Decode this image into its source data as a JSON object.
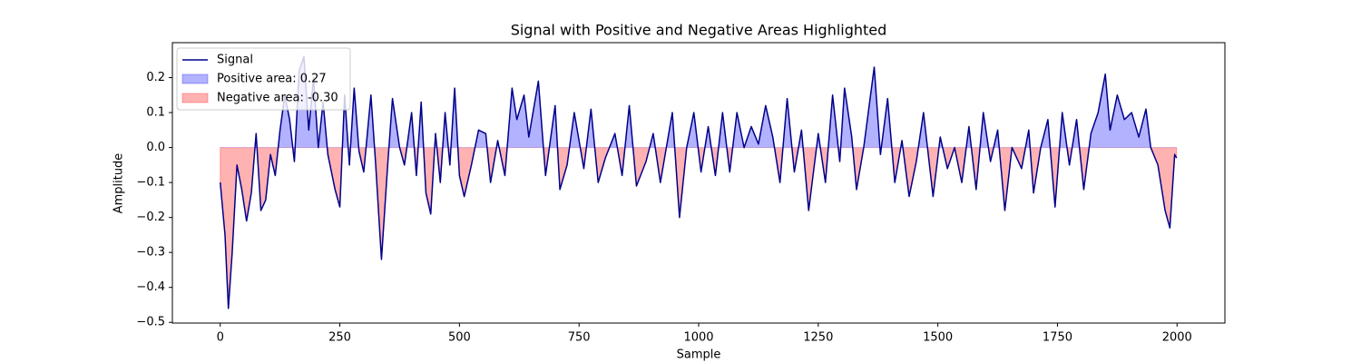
{
  "chart_data": {
    "type": "line",
    "title": "Signal with Positive and Negative Areas Highlighted",
    "xlabel": "Sample",
    "ylabel": "Amplitude",
    "xlim": [
      -100,
      2100
    ],
    "ylim": [
      -0.502,
      0.3
    ],
    "xticks": [
      0,
      250,
      500,
      750,
      1000,
      1250,
      1500,
      1750,
      2000
    ],
    "yticks": [
      {
        "value": -0.5,
        "label": "−0.5"
      },
      {
        "value": -0.4,
        "label": "−0.4"
      },
      {
        "value": -0.3,
        "label": "−0.3"
      },
      {
        "value": -0.2,
        "label": "−0.2"
      },
      {
        "value": -0.1,
        "label": "−0.1"
      },
      {
        "value": 0,
        "label": "0.0"
      },
      {
        "value": 0.1,
        "label": "0.1"
      },
      {
        "value": 0.2,
        "label": "0.2"
      }
    ],
    "legend": "upper left",
    "x": [
      0,
      10,
      17,
      25,
      35,
      45,
      55,
      65,
      75,
      85,
      95,
      105,
      115,
      125,
      135,
      145,
      155,
      165,
      175,
      185,
      195,
      205,
      215,
      225,
      240,
      250,
      260,
      270,
      280,
      290,
      300,
      315,
      325,
      337,
      350,
      360,
      375,
      385,
      400,
      410,
      420,
      430,
      440,
      450,
      460,
      470,
      480,
      490,
      500,
      510,
      525,
      540,
      555,
      565,
      580,
      595,
      610,
      620,
      635,
      645,
      665,
      680,
      700,
      710,
      725,
      740,
      760,
      775,
      790,
      805,
      825,
      840,
      855,
      870,
      890,
      905,
      920,
      945,
      960,
      975,
      990,
      1005,
      1020,
      1035,
      1050,
      1065,
      1080,
      1095,
      1110,
      1125,
      1140,
      1155,
      1170,
      1185,
      1200,
      1215,
      1230,
      1250,
      1265,
      1280,
      1295,
      1305,
      1320,
      1330,
      1345,
      1367,
      1380,
      1395,
      1410,
      1425,
      1440,
      1455,
      1470,
      1490,
      1505,
      1520,
      1535,
      1550,
      1565,
      1580,
      1595,
      1610,
      1625,
      1640,
      1655,
      1675,
      1690,
      1700,
      1715,
      1730,
      1745,
      1760,
      1775,
      1790,
      1805,
      1820,
      1835,
      1850,
      1860,
      1875,
      1890,
      1905,
      1920,
      1935,
      1945,
      1960,
      1975,
      1985,
      1995,
      1999
    ],
    "series": [
      {
        "name": "Signal",
        "color": "#00008b",
        "values": [
          -0.1,
          -0.25,
          -0.46,
          -0.3,
          -0.05,
          -0.12,
          -0.21,
          -0.13,
          0.04,
          -0.18,
          -0.15,
          -0.02,
          -0.08,
          0.05,
          0.15,
          0.08,
          -0.04,
          0.22,
          0.26,
          0.05,
          0.2,
          0.0,
          0.13,
          -0.02,
          -0.12,
          -0.17,
          0.15,
          -0.05,
          0.17,
          -0.01,
          -0.07,
          0.15,
          -0.05,
          -0.32,
          -0.05,
          0.14,
          0.0,
          -0.05,
          0.1,
          -0.08,
          0.13,
          -0.13,
          -0.19,
          0.04,
          -0.1,
          0.1,
          -0.05,
          0.17,
          -0.08,
          -0.14,
          -0.05,
          0.05,
          0.04,
          -0.1,
          0.02,
          -0.08,
          0.17,
          0.08,
          0.15,
          0.03,
          0.19,
          -0.08,
          0.12,
          -0.12,
          -0.05,
          0.1,
          -0.06,
          0.11,
          -0.1,
          -0.03,
          0.04,
          -0.08,
          0.12,
          -0.11,
          -0.04,
          0.04,
          -0.1,
          0.1,
          -0.2,
          0.0,
          0.1,
          -0.07,
          0.06,
          -0.08,
          0.1,
          -0.07,
          0.1,
          0.0,
          0.06,
          0.01,
          0.12,
          0.03,
          -0.1,
          0.14,
          -0.07,
          0.05,
          -0.18,
          0.04,
          -0.1,
          0.15,
          -0.04,
          0.17,
          0.03,
          -0.12,
          0.0,
          0.23,
          -0.02,
          0.14,
          -0.1,
          0.02,
          -0.14,
          -0.04,
          0.1,
          -0.14,
          0.03,
          -0.06,
          0.0,
          -0.1,
          0.06,
          -0.12,
          0.1,
          -0.04,
          0.05,
          -0.18,
          0.0,
          -0.06,
          0.05,
          -0.13,
          0.0,
          0.08,
          -0.17,
          0.1,
          -0.05,
          0.08,
          -0.12,
          0.04,
          0.1,
          0.21,
          0.05,
          0.15,
          0.08,
          0.1,
          0.03,
          0.11,
          0.0,
          -0.05,
          -0.18,
          -0.23,
          -0.02,
          -0.03
        ]
      }
    ],
    "areas": [
      {
        "name": "Positive area: 0.27",
        "color": "#0000ff",
        "side": "above",
        "alpha": 0.3
      },
      {
        "name": "Negative area: -0.30",
        "color": "#ff0000",
        "side": "below",
        "alpha": 0.3
      }
    ]
  }
}
